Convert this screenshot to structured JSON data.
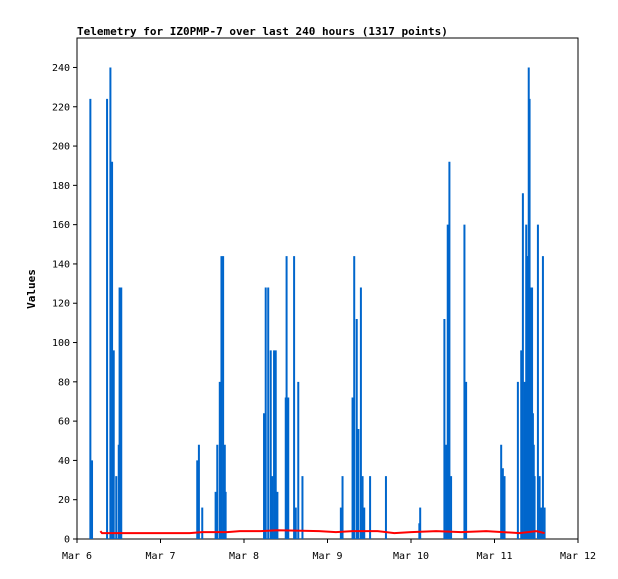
{
  "chart_data": {
    "type": "bar",
    "title": "Telemetry for IZ0PMP-7 over last 240 hours (1317 points)",
    "xlabel": "",
    "ylabel": "Values",
    "xlim": [
      0,
      6
    ],
    "ylim": [
      0,
      255
    ],
    "grid": false,
    "x_tick_labels": [
      "Mar 6",
      "Mar 7",
      "Mar 8",
      "Mar 9",
      "Mar 10",
      "Mar 11",
      "Mar 12"
    ],
    "y_ticks": [
      0,
      20,
      40,
      60,
      80,
      100,
      120,
      140,
      160,
      180,
      200,
      220,
      240
    ],
    "series": [
      {
        "color": "#0066cc",
        "style": "impulse",
        "points": [
          {
            "x": 0.16,
            "y": 224
          },
          {
            "x": 0.18,
            "y": 40
          },
          {
            "x": 0.36,
            "y": 224
          },
          {
            "x": 0.4,
            "y": 240
          },
          {
            "x": 0.42,
            "y": 192
          },
          {
            "x": 0.44,
            "y": 96
          },
          {
            "x": 0.47,
            "y": 32
          },
          {
            "x": 0.5,
            "y": 48
          },
          {
            "x": 0.51,
            "y": 128
          },
          {
            "x": 0.53,
            "y": 128
          },
          {
            "x": 1.44,
            "y": 40
          },
          {
            "x": 1.46,
            "y": 48
          },
          {
            "x": 1.5,
            "y": 16
          },
          {
            "x": 1.66,
            "y": 24
          },
          {
            "x": 1.68,
            "y": 48
          },
          {
            "x": 1.71,
            "y": 80
          },
          {
            "x": 1.73,
            "y": 144
          },
          {
            "x": 1.75,
            "y": 144
          },
          {
            "x": 1.77,
            "y": 48
          },
          {
            "x": 1.78,
            "y": 24
          },
          {
            "x": 2.24,
            "y": 64
          },
          {
            "x": 2.26,
            "y": 128
          },
          {
            "x": 2.29,
            "y": 128
          },
          {
            "x": 2.32,
            "y": 96
          },
          {
            "x": 2.34,
            "y": 32
          },
          {
            "x": 2.36,
            "y": 96
          },
          {
            "x": 2.38,
            "y": 96
          },
          {
            "x": 2.4,
            "y": 24
          },
          {
            "x": 2.5,
            "y": 72
          },
          {
            "x": 2.51,
            "y": 144
          },
          {
            "x": 2.53,
            "y": 72
          },
          {
            "x": 2.6,
            "y": 144
          },
          {
            "x": 2.62,
            "y": 16
          },
          {
            "x": 2.65,
            "y": 80
          },
          {
            "x": 2.7,
            "y": 32
          },
          {
            "x": 3.16,
            "y": 16
          },
          {
            "x": 3.18,
            "y": 32
          },
          {
            "x": 3.3,
            "y": 72
          },
          {
            "x": 3.32,
            "y": 144
          },
          {
            "x": 3.35,
            "y": 112
          },
          {
            "x": 3.37,
            "y": 56
          },
          {
            "x": 3.4,
            "y": 128
          },
          {
            "x": 3.42,
            "y": 32
          },
          {
            "x": 3.44,
            "y": 16
          },
          {
            "x": 3.51,
            "y": 32
          },
          {
            "x": 3.7,
            "y": 32
          },
          {
            "x": 4.1,
            "y": 8
          },
          {
            "x": 4.11,
            "y": 16
          },
          {
            "x": 4.4,
            "y": 112
          },
          {
            "x": 4.42,
            "y": 48
          },
          {
            "x": 4.44,
            "y": 160
          },
          {
            "x": 4.46,
            "y": 192
          },
          {
            "x": 4.48,
            "y": 32
          },
          {
            "x": 4.64,
            "y": 160
          },
          {
            "x": 4.66,
            "y": 80
          },
          {
            "x": 5.08,
            "y": 48
          },
          {
            "x": 5.1,
            "y": 36
          },
          {
            "x": 5.12,
            "y": 32
          },
          {
            "x": 5.28,
            "y": 80
          },
          {
            "x": 5.32,
            "y": 96
          },
          {
            "x": 5.34,
            "y": 176
          },
          {
            "x": 5.36,
            "y": 80
          },
          {
            "x": 5.38,
            "y": 160
          },
          {
            "x": 5.39,
            "y": 144
          },
          {
            "x": 5.4,
            "y": 144
          },
          {
            "x": 5.41,
            "y": 240
          },
          {
            "x": 5.42,
            "y": 224
          },
          {
            "x": 5.44,
            "y": 128
          },
          {
            "x": 5.45,
            "y": 128
          },
          {
            "x": 5.46,
            "y": 64
          },
          {
            "x": 5.47,
            "y": 48
          },
          {
            "x": 5.48,
            "y": 32
          },
          {
            "x": 5.52,
            "y": 160
          },
          {
            "x": 5.54,
            "y": 32
          },
          {
            "x": 5.56,
            "y": 16
          },
          {
            "x": 5.58,
            "y": 144
          },
          {
            "x": 5.6,
            "y": 16
          }
        ]
      },
      {
        "color": "#ff0000",
        "style": "line",
        "points": [
          {
            "x": 0.28,
            "y": 4
          },
          {
            "x": 0.3,
            "y": 3
          },
          {
            "x": 0.6,
            "y": 3
          },
          {
            "x": 1.35,
            "y": 3
          },
          {
            "x": 1.5,
            "y": 3.5
          },
          {
            "x": 1.8,
            "y": 3.5
          },
          {
            "x": 1.95,
            "y": 4
          },
          {
            "x": 2.2,
            "y": 4
          },
          {
            "x": 2.4,
            "y": 4.5
          },
          {
            "x": 2.9,
            "y": 4
          },
          {
            "x": 3.1,
            "y": 3.5
          },
          {
            "x": 3.3,
            "y": 4
          },
          {
            "x": 3.6,
            "y": 4
          },
          {
            "x": 3.8,
            "y": 3
          },
          {
            "x": 4.0,
            "y": 3.5
          },
          {
            "x": 4.3,
            "y": 4
          },
          {
            "x": 4.6,
            "y": 3.5
          },
          {
            "x": 4.9,
            "y": 4
          },
          {
            "x": 5.1,
            "y": 3.5
          },
          {
            "x": 5.3,
            "y": 3
          },
          {
            "x": 5.5,
            "y": 4
          },
          {
            "x": 5.6,
            "y": 3
          }
        ]
      }
    ]
  }
}
